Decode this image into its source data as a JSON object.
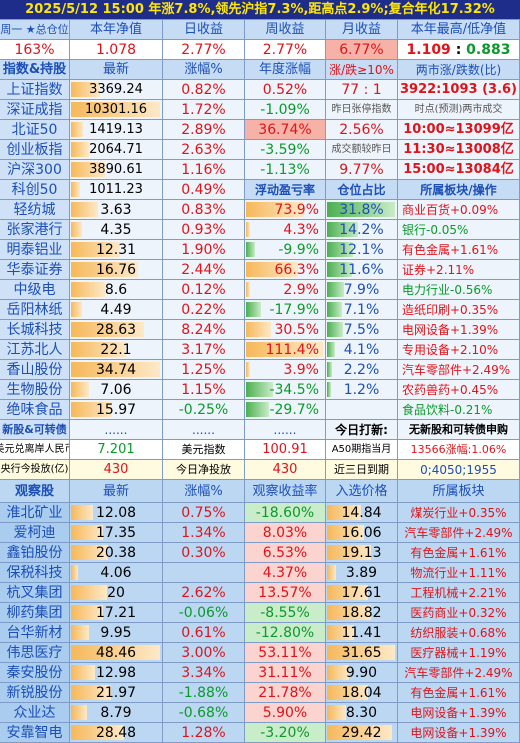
{
  "title": "2025/5/12 15:00 年涨7.8%,领先沪指7.3%,距高点2.9%;复合年化17.32%",
  "summary": {
    "headers": [
      "周一 ★总仓位",
      "本年净值",
      "日收益",
      "周收益",
      "月收益",
      "本年最高/低净值"
    ],
    "values": [
      "163%",
      "1.078",
      "2.77%",
      "2.77%",
      "6.77%",
      "1.109 : 0.883"
    ]
  },
  "index_header": [
    "指数&持股",
    "最新",
    "涨幅%",
    "年度涨幅",
    "涨/跌≥10%",
    "两市涨/跌数(比)"
  ],
  "indexes": [
    {
      "name": "上证指数",
      "latest": "3369.24",
      "change": "0.82%",
      "ytd": "0.52%",
      "info": "77 : 1",
      "extra": "3922:1093 (3.6)",
      "bar": 0.33
    },
    {
      "name": "深证成指",
      "latest": "10301.16",
      "change": "1.72%",
      "ytd": "-1.09%",
      "info": "昨日张停指数",
      "extra": "时点(预测)两市成交",
      "bar": 1.0
    },
    {
      "name": "北证50",
      "latest": "1419.13",
      "change": "2.89%",
      "ytd": "36.74%",
      "info": "2.56%",
      "extra": "10:00≈13099亿",
      "bar": 0.14
    },
    {
      "name": "创业板指",
      "latest": "2064.71",
      "change": "2.63%",
      "ytd": "-3.59%",
      "info": "成交额较昨日",
      "extra": "11:30≈13008亿",
      "bar": 0.2
    },
    {
      "name": "沪深300",
      "latest": "3890.61",
      "change": "1.16%",
      "ytd": "-1.13%",
      "info": "9.77%",
      "extra": "15:00≈13084亿",
      "bar": 0.38
    },
    {
      "name": "科创50",
      "latest": "1011.23",
      "change": "0.49%",
      "ytd": "",
      "info": "",
      "extra": "",
      "bar": 0.1
    }
  ],
  "stock_header": [
    "",
    "",
    "",
    "浮动盈亏率",
    "仓位占比",
    "所属板块/操作"
  ],
  "stocks": [
    {
      "name": "轻纺城",
      "price": "3.63",
      "change": "0.83%",
      "pnl": "73.9%",
      "pos": "31.8%",
      "sector": "商业百货+0.09%",
      "pbar": 0.3,
      "pnlbar": 0.75,
      "pnlc": "o",
      "posbar": 1.0
    },
    {
      "name": "张家港行",
      "price": "4.35",
      "change": "0.93%",
      "pnl": "4.3%",
      "pos": "14.2%",
      "sector": "银行-0.05%",
      "pbar": 0.12,
      "pnlbar": 0.05,
      "pnlc": "o",
      "posbar": 0.45
    },
    {
      "name": "明泰铝业",
      "price": "12.31",
      "change": "1.90%",
      "pnl": "-9.9%",
      "pos": "12.1%",
      "sector": "有色金属+1.61%",
      "pbar": 0.55,
      "pnlbar": 0.12,
      "pnlc": "g",
      "posbar": 0.38
    },
    {
      "name": "华泰证券",
      "price": "16.76",
      "change": "2.44%",
      "pnl": "66.3%",
      "pos": "11.6%",
      "sector": "证券+2.11%",
      "pbar": 0.75,
      "pnlbar": 0.68,
      "pnlc": "o",
      "posbar": 0.37
    },
    {
      "name": "中级电",
      "price": "8.6",
      "change": "0.12%",
      "pnl": "2.9%",
      "pos": "7.9%",
      "sector": "电力行业-0.56%",
      "pbar": 0.38,
      "pnlbar": 0.03,
      "pnlc": "o",
      "posbar": 0.25
    },
    {
      "name": "岳阳林纸",
      "price": "4.49",
      "change": "0.22%",
      "pnl": "-17.9%",
      "pos": "7.1%",
      "sector": "造纸印刷+0.35%",
      "pbar": 0.12,
      "pnlbar": 0.2,
      "pnlc": "g",
      "posbar": 0.22
    },
    {
      "name": "长城科技",
      "price": "28.63",
      "change": "8.24%",
      "pnl": "30.5%",
      "pos": "7.5%",
      "sector": "电网设备+1.39%",
      "pbar": 0.82,
      "pnlbar": 0.32,
      "pnlc": "o",
      "posbar": 0.23
    },
    {
      "name": "江苏北人",
      "price": "22.1",
      "change": "3.17%",
      "pnl": "111.4%",
      "pos": "4.1%",
      "sector": "专用设备+2.10%",
      "pbar": 0.62,
      "pnlbar": 1.0,
      "pnlc": "o",
      "posbar": 0.12
    },
    {
      "name": "香山股份",
      "price": "34.74",
      "change": "1.25%",
      "pnl": "3.9%",
      "pos": "2.2%",
      "sector": "汽车零部件+2.49%",
      "pbar": 1.0,
      "pnlbar": 0.04,
      "pnlc": "o",
      "posbar": 0.07
    },
    {
      "name": "生物股份",
      "price": "7.06",
      "change": "1.15%",
      "pnl": "-34.5%",
      "pos": "1.2%",
      "sector": "农药兽药+0.45%",
      "pbar": 0.2,
      "pnlbar": 0.35,
      "pnlc": "g",
      "posbar": 0.04
    },
    {
      "name": "绝味食品",
      "price": "15.97",
      "change": "-0.25%",
      "pnl": "-29.7%",
      "pos": "",
      "sector": "食品饮料-0.21%",
      "pbar": 0.46,
      "pnlbar": 0.3,
      "pnlc": "g",
      "posbar": 0
    }
  ],
  "newbond": {
    "name": "新股&可转债",
    "price": "......",
    "change": "......",
    "pnl": "......",
    "pos": "......",
    "c5": "今日打新:",
    "c6": "无新股和可转债申购"
  },
  "fx": {
    "l1": "美元兑离岸人民币",
    "v1": "7.201",
    "l2": "美元指数",
    "v2": "100.91",
    "l3": "A50期指当月",
    "v3": "13566涨幅:1.06%"
  },
  "cb": {
    "l1": "央行今投放(亿)",
    "v1": "430",
    "l2": "今日净投放",
    "v2": "430",
    "l3": "近三日到期",
    "v3": "0;4050;1955"
  },
  "watch_header": [
    "观察股",
    "最新",
    "涨幅%",
    "观察收益率",
    "入选价格",
    "所属板块"
  ],
  "watch": [
    {
      "name": "淮北矿业",
      "price": "12.08",
      "change": "0.75%",
      "ret": "-18.60%",
      "entry": "14.84",
      "sector": "煤炭行业+0.35%",
      "pbar": 0.25,
      "ebar": 0.5
    },
    {
      "name": "爱柯迪",
      "price": "17.35",
      "change": "1.34%",
      "ret": "8.03%",
      "entry": "16.06",
      "sector": "汽车零部件+2.49%",
      "pbar": 0.36,
      "ebar": 0.55
    },
    {
      "name": "鑫铂股份",
      "price": "20.38",
      "change": "0.30%",
      "ret": "6.53%",
      "entry": "19.13",
      "sector": "有色金属+1.61%",
      "pbar": 0.42,
      "ebar": 0.65
    },
    {
      "name": "保税科技",
      "price": "4.06",
      "change": "",
      "ret": "4.37%",
      "entry": "3.89",
      "sector": "物流行业+1.11%",
      "pbar": 0.08,
      "ebar": 0.13
    },
    {
      "name": "杭叉集团",
      "price": "20",
      "change": "2.62%",
      "ret": "13.57%",
      "entry": "17.61",
      "sector": "工程机械+2.21%",
      "pbar": 0.41,
      "ebar": 0.6
    },
    {
      "name": "柳药集团",
      "price": "17.21",
      "change": "-0.06%",
      "ret": "-8.55%",
      "entry": "18.82",
      "sector": "医药商业+0.32%",
      "pbar": 0.36,
      "ebar": 0.64
    },
    {
      "name": "台华新材",
      "price": "9.95",
      "change": "0.61%",
      "ret": "-12.80%",
      "entry": "11.41",
      "sector": "纺织服装+0.68%",
      "pbar": 0.2,
      "ebar": 0.39
    },
    {
      "name": "伟思医疗",
      "price": "48.46",
      "change": "3.00%",
      "ret": "53.11%",
      "entry": "31.65",
      "sector": "医疗器械+1.19%",
      "pbar": 1.0,
      "ebar": 1.0
    },
    {
      "name": "秦安股份",
      "price": "12.98",
      "change": "3.34%",
      "ret": "31.11%",
      "entry": "9.90",
      "sector": "汽车零部件+2.49%",
      "pbar": 0.27,
      "ebar": 0.33
    },
    {
      "name": "新锐股份",
      "price": "21.97",
      "change": "-1.88%",
      "ret": "21.78%",
      "entry": "18.04",
      "sector": "有色金属+1.61%",
      "pbar": 0.45,
      "ebar": 0.6
    },
    {
      "name": "众业达",
      "price": "8.79",
      "change": "-0.68%",
      "ret": "5.90%",
      "entry": "8.30",
      "sector": "电网设备+1.39%",
      "pbar": 0.18,
      "ebar": 0.28
    },
    {
      "name": "安靠智电",
      "price": "28.48",
      "change": "1.28%",
      "ret": "-3.20%",
      "entry": "29.42",
      "sector": "电网设备+1.39%",
      "pbar": 0.59,
      "ebar": 0.95
    }
  ],
  "colors": {
    "title_bg": "#1e2c8a",
    "title_fg": "#ffe600",
    "header_bg": "#c6dcf4",
    "header_fg": "#1c4fb8",
    "row_bg": "#eef4fb",
    "name_bg": "#cfe1f6",
    "name_fg": "#1c4fb8",
    "watch_bg": "#bcd7f2",
    "watch_name_bg": "#a9ccef",
    "up": "#e0131a",
    "down": "#0a9a2a",
    "pos_bar": "#69c46d",
    "fx_bg": "#ffffff",
    "cb_bg": "#fffbe0"
  }
}
